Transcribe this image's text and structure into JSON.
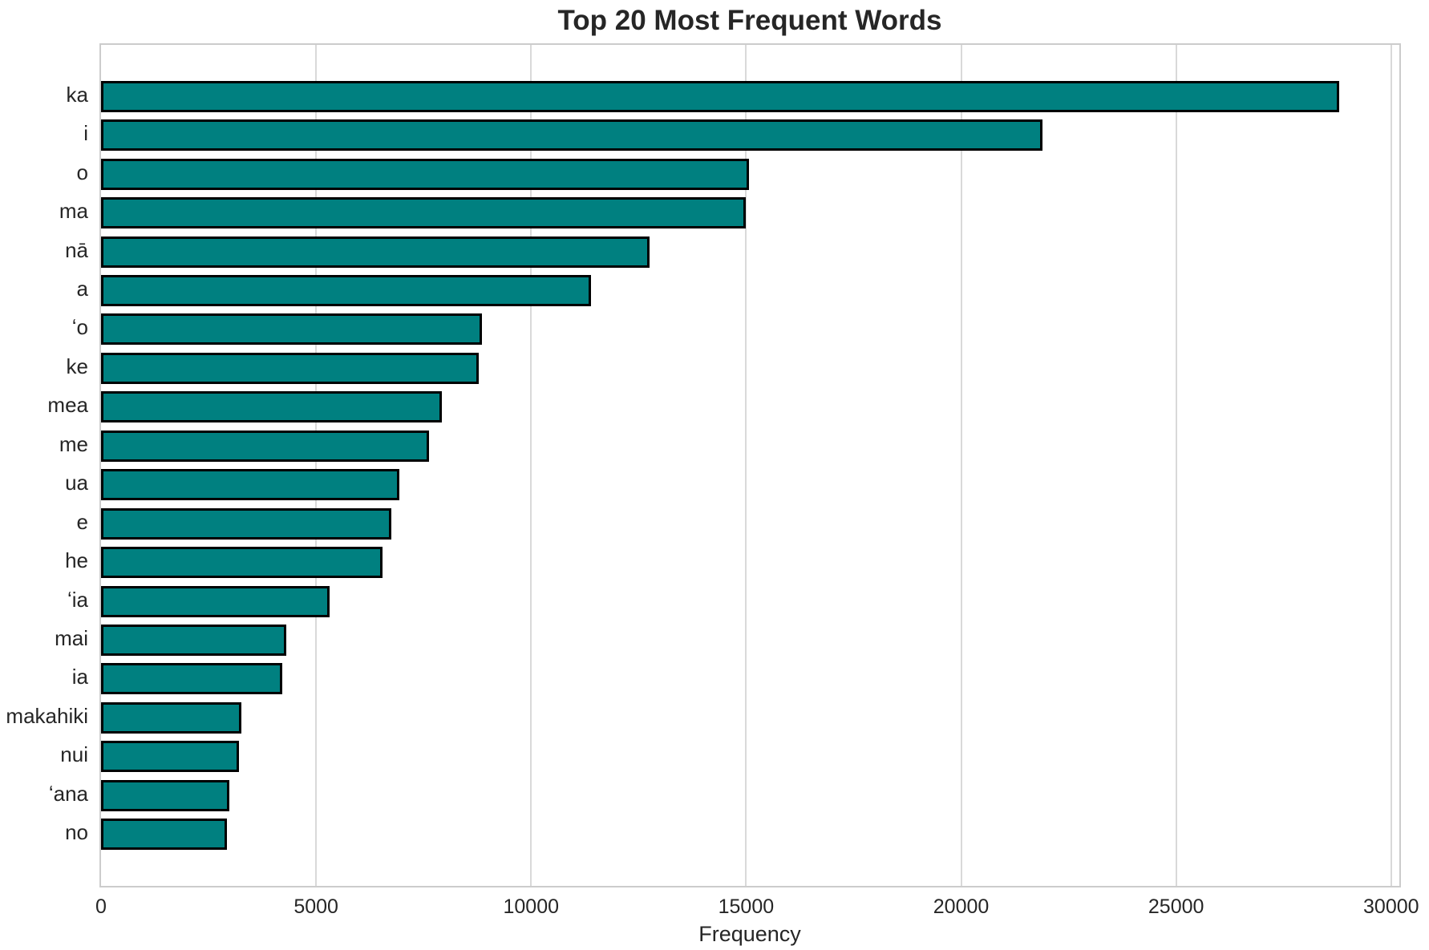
{
  "title": "Top 20 Most Frequent Words",
  "xlabel": "Frequency",
  "chart_data": {
    "type": "bar",
    "orientation": "horizontal",
    "title": "Top 20 Most Frequent Words",
    "xlabel": "Frequency",
    "ylabel": "",
    "categories": [
      "ka",
      "i",
      "o",
      "ma",
      "nā",
      "a",
      "ʻo",
      "ke",
      "mea",
      "me",
      "ua",
      "e",
      "he",
      "ʻia",
      "mai",
      "ia",
      "makahiki",
      "nui",
      "ʻana",
      "no"
    ],
    "values": [
      28790,
      21900,
      15060,
      15000,
      12750,
      11400,
      8860,
      8780,
      7930,
      7620,
      6930,
      6750,
      6550,
      5310,
      4310,
      4220,
      3260,
      3200,
      2990,
      2920
    ],
    "xticks": [
      0,
      5000,
      10000,
      15000,
      20000,
      25000,
      30000
    ],
    "xtick_labels": [
      "0",
      "5000",
      "10000",
      "15000",
      "20000",
      "25000",
      "30000"
    ],
    "xlim": [
      0,
      30190
    ],
    "grid": true,
    "legend": false,
    "bar_color": "#008080",
    "bar_edge_color": "#000000",
    "grid_color": "#d9d9d9",
    "spine_color": "#cccccc",
    "text_color": "#262626"
  }
}
